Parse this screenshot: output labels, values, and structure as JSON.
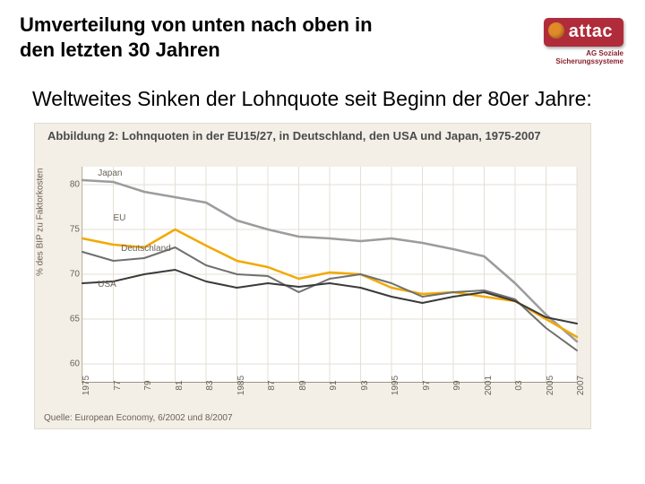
{
  "slide": {
    "title": "Umverteilung von unten nach oben in den letzten 30 Jahren",
    "subtitle": "Weltweites Sinken der Lohnquote seit Beginn der 80er Jahre:"
  },
  "logo": {
    "text": "attac",
    "bg_color": "#b02c3a",
    "fg_color": "#ffffff",
    "accent_color": "#e08a2a",
    "sub1": "AG Soziale",
    "sub2": "Sicherungssysteme",
    "sub_color": "#8a1f2b"
  },
  "chart": {
    "type": "line",
    "title": "Abbildung 2: Lohnquoten in der EU15/27, in Deutschland, den USA und Japan, 1975-2007",
    "source": "Quelle: European Economy, 6/2002 und 8/2007",
    "bg_color": "#f3efe7",
    "plot_bg": "#ffffff",
    "grid_color": "#e4dfd6",
    "axis_color": "#9d9487",
    "text_color": "#6a6258",
    "y_label": "% des BIP zu Faktorkosten",
    "ylim": [
      58,
      82
    ],
    "yticks": [
      60,
      65,
      70,
      75,
      80
    ],
    "x_years": [
      1975,
      1977,
      1979,
      1981,
      1983,
      1985,
      1987,
      1989,
      1991,
      1993,
      1995,
      1997,
      1999,
      2001,
      2003,
      2005,
      2007
    ],
    "x_labels": [
      "1975",
      "77",
      "79",
      "81",
      "83",
      "1985",
      "87",
      "89",
      "91",
      "93",
      "1995",
      "97",
      "99",
      "2001",
      "03",
      "2005",
      "2007"
    ],
    "series": [
      {
        "name": "Japan",
        "label": "Japan",
        "color": "#9c9c9c",
        "width": 2.5,
        "label_x": 1976,
        "label_y": 81.2,
        "values": [
          80.5,
          80.3,
          79.2,
          78.6,
          78.0,
          76.0,
          75.0,
          74.2,
          74.0,
          73.7,
          74.0,
          73.5,
          72.8,
          72.0,
          69.0,
          65.5,
          62.5
        ]
      },
      {
        "name": "EU",
        "label": "EU",
        "color": "#f2a900",
        "width": 2.5,
        "label_x": 1977,
        "label_y": 76.2,
        "values": [
          74.0,
          73.3,
          73.0,
          75.0,
          73.2,
          71.5,
          70.8,
          69.5,
          70.2,
          70.0,
          68.5,
          67.8,
          68.0,
          67.5,
          67.0,
          65.0,
          63.0
        ]
      },
      {
        "name": "Deutschland",
        "label": "Deutschland",
        "color": "#6f6f6f",
        "width": 2,
        "label_x": 1977.5,
        "label_y": 72.8,
        "values": [
          72.5,
          71.5,
          71.8,
          73.0,
          71.0,
          70.0,
          69.8,
          68.0,
          69.5,
          70.0,
          69.0,
          67.5,
          68.0,
          68.2,
          67.2,
          64.0,
          61.5
        ]
      },
      {
        "name": "USA",
        "label": "USA",
        "color": "#3a3a3a",
        "width": 2,
        "label_x": 1976,
        "label_y": 68.8,
        "values": [
          69.0,
          69.2,
          70.0,
          70.5,
          69.2,
          68.5,
          69.0,
          68.6,
          69.0,
          68.5,
          67.5,
          66.8,
          67.5,
          68.0,
          67.0,
          65.2,
          64.5
        ]
      }
    ]
  }
}
